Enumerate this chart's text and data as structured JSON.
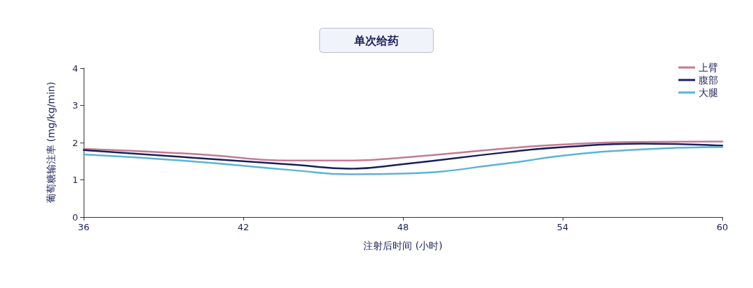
{
  "chart_data": {
    "type": "line",
    "title": "单次给药",
    "xlabel": "注射后时间 (小时)",
    "ylabel": "葡萄糖输注率 (mg/kg/min)",
    "x": [
      36,
      40,
      44,
      46,
      48,
      52,
      54,
      57,
      60
    ],
    "series": [
      {
        "name": "上臂",
        "color": "#c47a93",
        "values": [
          1.83,
          1.7,
          1.52,
          1.52,
          1.6,
          1.85,
          1.95,
          2.02,
          2.03
        ]
      },
      {
        "name": "腹部",
        "color": "#1a1f5a",
        "values": [
          1.8,
          1.6,
          1.4,
          1.3,
          1.42,
          1.75,
          1.88,
          1.97,
          1.92
        ]
      },
      {
        "name": "大腿",
        "color": "#5ab4d6",
        "values": [
          1.68,
          1.5,
          1.25,
          1.15,
          1.17,
          1.45,
          1.65,
          1.82,
          1.88
        ]
      }
    ],
    "xlim": [
      36,
      60
    ],
    "xticks": [
      36,
      42,
      48,
      54,
      60
    ],
    "ylim": [
      0,
      4
    ],
    "yticks": [
      0,
      1,
      2,
      3,
      4
    ],
    "grid": false,
    "legend": "top right",
    "marker": "none",
    "line_style": "solid"
  }
}
